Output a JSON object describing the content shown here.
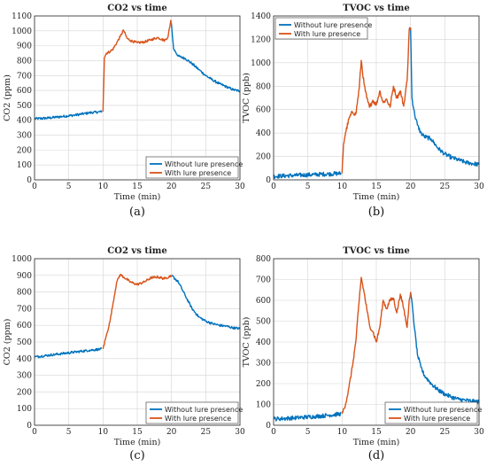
{
  "colors": {
    "without": "#0072BD",
    "with": "#D95319",
    "grid": "#d4d4d4",
    "axis": "#262626"
  },
  "legend_labels": {
    "without": "Without lure presence",
    "with": "With lure presence"
  },
  "chart_data": [
    {
      "type": "line",
      "caption": "(a)",
      "title": "CO2 vs time",
      "xlabel": "Time (min)",
      "ylabel": "CO2 (ppm)",
      "xlim": [
        0,
        30
      ],
      "ylim": [
        0,
        1100
      ],
      "xticks": [
        0,
        5,
        10,
        15,
        20,
        25,
        30
      ],
      "yticks": [
        0,
        100,
        200,
        300,
        400,
        500,
        600,
        700,
        800,
        900,
        1000,
        1100
      ],
      "grid": true,
      "legend_position": "bottom-right",
      "noise": 8,
      "series": [
        {
          "name": "Without lure presence",
          "points": [
            [
              0,
              410
            ],
            [
              2,
              415
            ],
            [
              4,
              425
            ],
            [
              6,
              435
            ],
            [
              8,
              450
            ],
            [
              9.9,
              458
            ],
            [
              20,
              1045
            ],
            [
              20.3,
              880
            ],
            [
              21,
              830
            ],
            [
              22,
              815
            ],
            [
              23,
              780
            ],
            [
              24,
              740
            ],
            [
              25,
              700
            ],
            [
              26,
              670
            ],
            [
              27,
              645
            ],
            [
              28,
              625
            ],
            [
              29,
              605
            ],
            [
              30,
              595
            ]
          ]
        },
        {
          "name": "With lure presence",
          "points": [
            [
              10,
              458
            ],
            [
              10.2,
              820
            ],
            [
              10.5,
              850
            ],
            [
              11,
              860
            ],
            [
              11.5,
              880
            ],
            [
              12,
              920
            ],
            [
              12.5,
              960
            ],
            [
              13,
              1005
            ],
            [
              13.5,
              950
            ],
            [
              14,
              935
            ],
            [
              15,
              920
            ],
            [
              16,
              925
            ],
            [
              17,
              940
            ],
            [
              18,
              955
            ],
            [
              19,
              935
            ],
            [
              19.5,
              960
            ],
            [
              19.9,
              1070
            ],
            [
              20,
              1045
            ]
          ]
        }
      ]
    },
    {
      "type": "line",
      "caption": "(b)",
      "title": "TVOC vs time",
      "xlabel": "Time (min)",
      "ylabel": "TVOC (ppb)",
      "xlim": [
        0,
        30
      ],
      "ylim": [
        0,
        1400
      ],
      "xticks": [
        0,
        5,
        10,
        15,
        20,
        25,
        30
      ],
      "yticks": [
        0,
        200,
        400,
        600,
        800,
        1000,
        1200,
        1400
      ],
      "grid": true,
      "legend_position": "top-left",
      "noise": 18,
      "series": [
        {
          "name": "Without lure presence",
          "points": [
            [
              0,
              30
            ],
            [
              3,
              38
            ],
            [
              6,
              45
            ],
            [
              8,
              50
            ],
            [
              9.9,
              55
            ],
            [
              20,
              1300
            ],
            [
              20.2,
              700
            ],
            [
              20.6,
              560
            ],
            [
              21,
              470
            ],
            [
              21.5,
              400
            ],
            [
              22,
              370
            ],
            [
              23,
              350
            ],
            [
              24,
              270
            ],
            [
              25,
              220
            ],
            [
              26,
              190
            ],
            [
              27,
              170
            ],
            [
              28,
              150
            ],
            [
              29,
              140
            ],
            [
              30,
              130
            ]
          ]
        },
        {
          "name": "With lure presence",
          "points": [
            [
              10,
              55
            ],
            [
              10.2,
              300
            ],
            [
              10.5,
              400
            ],
            [
              11,
              520
            ],
            [
              11.5,
              580
            ],
            [
              12,
              560
            ],
            [
              12.5,
              780
            ],
            [
              12.8,
              1020
            ],
            [
              13.2,
              820
            ],
            [
              13.6,
              700
            ],
            [
              14,
              620
            ],
            [
              14.5,
              680
            ],
            [
              15,
              640
            ],
            [
              15.5,
              760
            ],
            [
              16,
              660
            ],
            [
              16.5,
              690
            ],
            [
              17,
              620
            ],
            [
              17.5,
              800
            ],
            [
              18,
              700
            ],
            [
              18.5,
              760
            ],
            [
              19,
              630
            ],
            [
              19.5,
              850
            ],
            [
              19.8,
              1280
            ],
            [
              20,
              1300
            ]
          ]
        }
      ]
    },
    {
      "type": "line",
      "caption": "(c)",
      "title": "CO2 vs time",
      "xlabel": "Time (min)",
      "ylabel": "CO2 (ppm)",
      "xlim": [
        0,
        30
      ],
      "ylim": [
        0,
        1000
      ],
      "xticks": [
        0,
        5,
        10,
        15,
        20,
        25,
        30
      ],
      "yticks": [
        0,
        100,
        200,
        300,
        400,
        500,
        600,
        700,
        800,
        900,
        1000
      ],
      "grid": true,
      "legend_position": "bottom-right",
      "noise": 7,
      "series": [
        {
          "name": "Without lure presence",
          "points": [
            [
              0,
              410
            ],
            [
              2,
              420
            ],
            [
              4,
              430
            ],
            [
              6,
              440
            ],
            [
              8,
              450
            ],
            [
              9.9,
              458
            ],
            [
              20,
              900
            ],
            [
              21,
              860
            ],
            [
              22,
              780
            ],
            [
              23,
              700
            ],
            [
              24,
              650
            ],
            [
              25,
              625
            ],
            [
              26,
              610
            ],
            [
              27,
              600
            ],
            [
              28,
              595
            ],
            [
              29,
              585
            ],
            [
              30,
              580
            ]
          ]
        },
        {
          "name": "With lure presence",
          "points": [
            [
              10,
              458
            ],
            [
              10.5,
              540
            ],
            [
              11,
              620
            ],
            [
              11.5,
              740
            ],
            [
              12,
              860
            ],
            [
              12.5,
              905
            ],
            [
              13,
              890
            ],
            [
              14,
              860
            ],
            [
              15,
              845
            ],
            [
              16,
              860
            ],
            [
              17,
              885
            ],
            [
              18,
              890
            ],
            [
              19,
              880
            ],
            [
              20,
              900
            ]
          ]
        }
      ]
    },
    {
      "type": "line",
      "caption": "(d)",
      "title": "TVOC vs time",
      "xlabel": "Time (min)",
      "ylabel": "TVOC (ppb)",
      "xlim": [
        0,
        30
      ],
      "ylim": [
        0,
        800
      ],
      "xticks": [
        0,
        5,
        10,
        15,
        20,
        25,
        30
      ],
      "yticks": [
        0,
        100,
        200,
        300,
        400,
        500,
        600,
        700,
        800
      ],
      "grid": true,
      "legend_position": "bottom-right",
      "noise": 10,
      "series": [
        {
          "name": "Without lure presence",
          "points": [
            [
              0,
              30
            ],
            [
              3,
              35
            ],
            [
              6,
              42
            ],
            [
              8,
              48
            ],
            [
              9.9,
              55
            ],
            [
              20,
              640
            ],
            [
              20.3,
              560
            ],
            [
              20.6,
              460
            ],
            [
              21,
              340
            ],
            [
              21.5,
              280
            ],
            [
              22,
              240
            ],
            [
              23,
              200
            ],
            [
              24,
              170
            ],
            [
              25,
              150
            ],
            [
              26,
              135
            ],
            [
              27,
              125
            ],
            [
              28,
              120
            ],
            [
              29,
              115
            ],
            [
              30,
              112
            ]
          ]
        },
        {
          "name": "With lure presence",
          "points": [
            [
              10,
              55
            ],
            [
              10.5,
              100
            ],
            [
              11,
              180
            ],
            [
              11.5,
              280
            ],
            [
              12,
              400
            ],
            [
              12.5,
              600
            ],
            [
              12.8,
              710
            ],
            [
              13.2,
              640
            ],
            [
              13.6,
              560
            ],
            [
              14,
              480
            ],
            [
              14.5,
              450
            ],
            [
              15,
              400
            ],
            [
              15.5,
              470
            ],
            [
              16,
              600
            ],
            [
              16.5,
              560
            ],
            [
              17,
              600
            ],
            [
              17.5,
              610
            ],
            [
              18,
              540
            ],
            [
              18.5,
              630
            ],
            [
              19,
              560
            ],
            [
              19.5,
              470
            ],
            [
              19.8,
              600
            ],
            [
              20,
              640
            ]
          ]
        }
      ]
    }
  ]
}
